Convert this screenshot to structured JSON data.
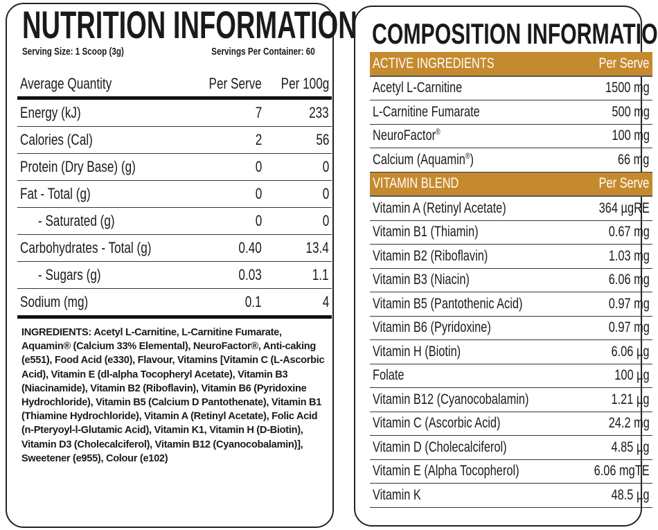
{
  "nutrition": {
    "title": "NUTRITION INFORMATION",
    "serving_size": "Serving Size: 1 Scoop (3g)",
    "servings_per_container": "Servings Per Container: 60",
    "headers": [
      "Average Quantity",
      "Per Serve",
      "Per 100g"
    ],
    "rows": [
      {
        "label": "Energy (kJ)",
        "serve": "7",
        "per100": "233"
      },
      {
        "label": "Calories (Cal)",
        "serve": "2",
        "per100": "56"
      },
      {
        "label": "Protein (Dry Base) (g)",
        "serve": "0",
        "per100": "0"
      },
      {
        "label": "Fat - Total (g)",
        "serve": "0",
        "per100": "0"
      },
      {
        "label": "- Saturated (g)",
        "serve": "0",
        "per100": "0"
      },
      {
        "label": "Carbohydrates - Total (g)",
        "serve": "0.40",
        "per100": "13.4"
      },
      {
        "label": "- Sugars (g)",
        "serve": "0.03",
        "per100": "1.1"
      },
      {
        "label": "Sodium (mg)",
        "serve": "0.1",
        "per100": "4"
      }
    ],
    "ingredients": "INGREDIENTS: Acetyl L-Carnitine, L-Carnitine Fumarate, Aquamin® (Calcium 33% Elemental), NeuroFactor®, Anti-caking (e551), Food Acid (e330), Flavour, Vitamins [Vitamin C (L-Ascorbic Acid), Vitamin E (dl-alpha Tocopheryl Acetate), Vitamin B3 (Niacinamide), Vitamin B2 (Riboflavin), Vitamin B6 (Pyridoxine Hydrochloride), Vitamin B5 (Calcium D Pantothenate), Vitamin B1 (Thiamine Hydrochloride), Vitamin A (Retinyl Acetate), Folic Acid (n-Pteryoyl-l-Glutamic Acid), Vitamin K1, Vitamin H (D-Biotin), Vitamin D3 (Cholecalciferol), Vitamin B12 (Cyanocobalamin)], Sweetener (e955), Colour (e102)"
  },
  "composition": {
    "title": "COMPOSITION INFORMATION",
    "accent_color": "#c68a2e",
    "active": {
      "header": "ACTIVE INGREDIENTS",
      "col": "Per Serve",
      "rows": [
        {
          "label": "Acetyl L-Carnitine",
          "value": "1500 mg"
        },
        {
          "label": "L-Carnitine Fumarate",
          "value": "500 mg"
        },
        {
          "label": "NeuroFactor®",
          "value": "100 mg"
        },
        {
          "label": "Calcium (Aquamin®)",
          "value": "66 mg"
        }
      ]
    },
    "vitamins": {
      "header": "VITAMIN BLEND",
      "col": "Per Serve",
      "rows": [
        {
          "label": "Vitamin A (Retinyl Acetate)",
          "value": "364 µgRE"
        },
        {
          "label": "Vitamin B1 (Thiamin)",
          "value": "0.67 mg"
        },
        {
          "label": "Vitamin B2 (Riboflavin)",
          "value": "1.03 mg"
        },
        {
          "label": "Vitamin B3 (Niacin)",
          "value": "6.06 mg"
        },
        {
          "label": "Vitamin B5 (Pantothenic Acid)",
          "value": "0.97 mg"
        },
        {
          "label": "Vitamin B6 (Pyridoxine)",
          "value": "0.97 mg"
        },
        {
          "label": "Vitamin H (Biotin)",
          "value": "6.06 µg"
        },
        {
          "label": "Folate",
          "value": "100 µg"
        },
        {
          "label": "Vitamin B12 (Cyanocobalamin)",
          "value": "1.21 µg"
        },
        {
          "label": "Vitamin C (Ascorbic Acid)",
          "value": "24.2 mg"
        },
        {
          "label": "Vitamin D (Cholecalciferol)",
          "value": "4.85 µg"
        },
        {
          "label": "Vitamin E (Alpha Tocopherol)",
          "value": "6.06 mgTE"
        },
        {
          "label": "Vitamin K",
          "value": "48.5 µg"
        }
      ]
    }
  }
}
